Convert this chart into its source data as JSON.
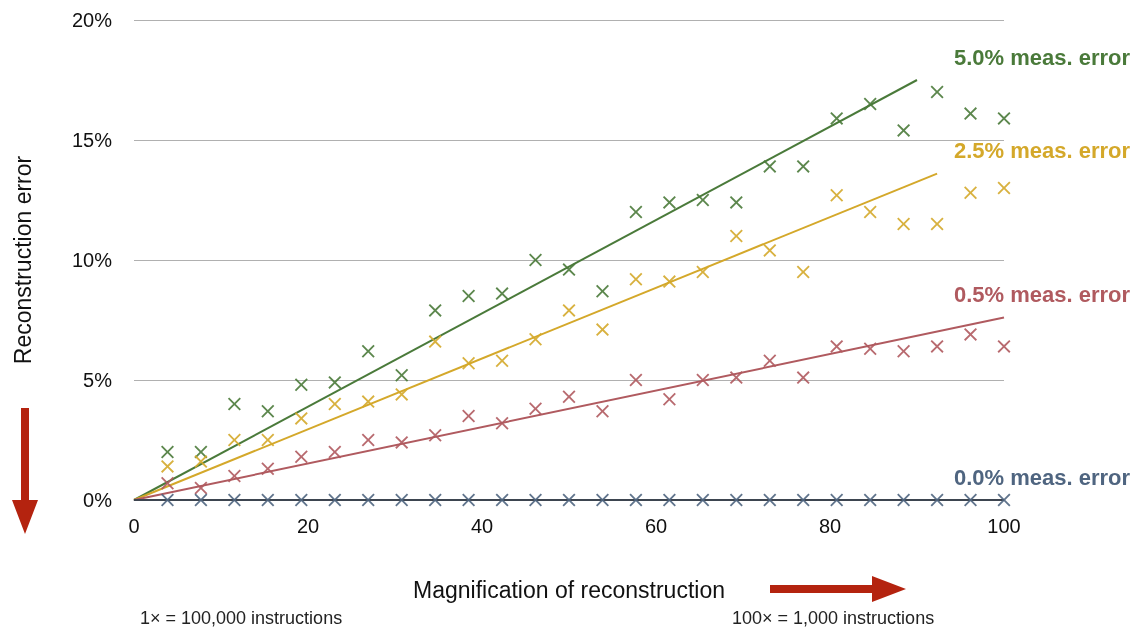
{
  "chart_data": {
    "type": "scatter",
    "xlabel": "Magnification of reconstruction",
    "ylabel": "Reconstruction error",
    "annotations": [
      "1× = 100,000 instructions",
      "100× = 1,000 instructions"
    ],
    "x": [
      3.85,
      7.69,
      11.54,
      15.38,
      19.23,
      23.08,
      26.92,
      30.77,
      34.62,
      38.46,
      42.31,
      46.15,
      50,
      53.85,
      57.69,
      61.54,
      65.38,
      69.23,
      73.08,
      76.92,
      80.77,
      84.62,
      88.46,
      92.31,
      96.15,
      100
    ],
    "series": [
      {
        "name": "5.0% meas. error",
        "color": "#4a7a3a",
        "values": [
          2.0,
          2.0,
          4.0,
          3.7,
          4.8,
          4.9,
          6.2,
          5.2,
          7.9,
          8.5,
          8.6,
          10.0,
          9.6,
          8.7,
          12.0,
          12.4,
          12.5,
          12.4,
          13.9,
          13.9,
          15.9,
          16.5,
          15.4,
          17.0,
          16.1,
          15.9
        ]
      },
      {
        "name": "2.5% meas. error",
        "color": "#d4a82a",
        "values": [
          1.4,
          1.6,
          2.5,
          2.5,
          3.4,
          4.0,
          4.1,
          4.4,
          6.6,
          5.7,
          5.8,
          6.7,
          7.9,
          7.1,
          9.2,
          9.1,
          9.5,
          11.0,
          10.4,
          9.5,
          12.7,
          12.0,
          11.5,
          11.5,
          12.8,
          13.0
        ]
      },
      {
        "name": "0.5% meas. error",
        "color": "#b05a5f",
        "values": [
          0.7,
          0.5,
          1.0,
          1.3,
          1.8,
          2.0,
          2.5,
          2.4,
          2.7,
          3.5,
          3.2,
          3.8,
          4.3,
          3.7,
          5.0,
          4.2,
          5.0,
          5.1,
          5.8,
          5.1,
          6.4,
          6.3,
          6.2,
          6.4,
          6.9,
          6.4
        ]
      },
      {
        "name": "0.0% meas. error",
        "color": "#4f6580",
        "values": [
          0,
          0,
          0,
          0,
          0,
          0,
          0,
          0,
          0,
          0,
          0,
          0,
          0,
          0,
          0,
          0,
          0,
          0,
          0,
          0,
          0,
          0,
          0,
          0,
          0,
          0
        ]
      },
      {
        "type": "line",
        "marker": "none",
        "color": "#4a7a3a",
        "x": [
          0,
          90
        ],
        "values": [
          0,
          17.5
        ]
      },
      {
        "type": "line",
        "marker": "none",
        "color": "#d4a82a",
        "x": [
          0,
          92.31
        ],
        "values": [
          0,
          13.6
        ]
      },
      {
        "type": "line",
        "marker": "none",
        "color": "#b05a5f",
        "x": [
          0,
          100
        ],
        "values": [
          0,
          7.6
        ]
      },
      {
        "type": "line",
        "marker": "none",
        "color": "#3d4550",
        "x": [
          0,
          100
        ],
        "values": [
          0,
          0
        ]
      }
    ],
    "marker": "cross",
    "grid": "y",
    "xlim": [
      0,
      100
    ],
    "xticks": [
      0,
      20,
      40,
      60,
      80,
      100
    ],
    "ylim": [
      0,
      20
    ],
    "yticks": [
      {
        "value": 0,
        "label": "0%"
      },
      {
        "value": 5,
        "label": "5%"
      },
      {
        "value": 10,
        "label": "10%"
      },
      {
        "value": 15,
        "label": "15%"
      },
      {
        "value": 20,
        "label": "20%"
      }
    ]
  }
}
